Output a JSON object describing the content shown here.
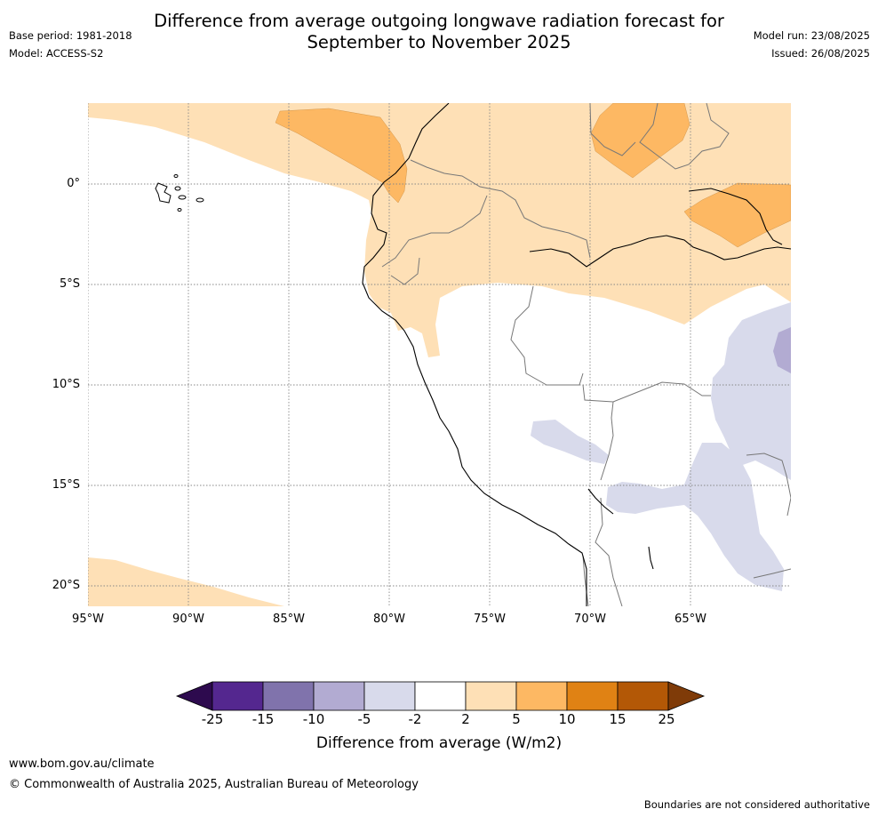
{
  "title_line1": "Difference from average outgoing longwave radiation forecast for",
  "title_line2": "September to November 2025",
  "meta": {
    "base_period": "Base period: 1981-2018",
    "model": "Model: ACCESS-S2",
    "model_run": "Model run: 23/08/2025",
    "issued": "Issued: 26/08/2025"
  },
  "map": {
    "lat_labels": [
      "0°",
      "5°S",
      "10°S",
      "15°S",
      "20°S"
    ],
    "lon_labels": [
      "95°W",
      "90°W",
      "85°W",
      "80°W",
      "75°W",
      "70°W",
      "65°W"
    ]
  },
  "colorbar": {
    "labels": [
      "-25",
      "-15",
      "-10",
      "-5",
      "-2",
      "2",
      "5",
      "10",
      "15",
      "25"
    ],
    "colors": [
      "#2d0a4e",
      "#54278f",
      "#8073ac",
      "#b2abd2",
      "#d8daeb",
      "#ffffff",
      "#fee0b6",
      "#fdb863",
      "#e08214",
      "#b35806",
      "#7f3b08"
    ],
    "title": "Difference from average (W/m2)"
  },
  "footer": {
    "url": "www.bom.gov.au/climate",
    "copyright": "© Commonwealth of Australia 2025, Australian Bureau of Meteorology",
    "disclaimer": "Boundaries are not considered authoritative"
  }
}
